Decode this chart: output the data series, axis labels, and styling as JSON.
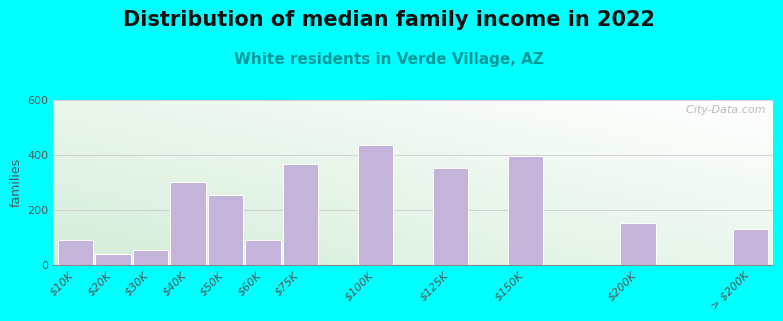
{
  "title": "Distribution of median family income in 2022",
  "subtitle": "White residents in Verde Village, AZ",
  "ylabel": "families",
  "background_outer": "#00FFFF",
  "bar_color": "#C5B4D9",
  "bar_edge_color": "#FFFFFF",
  "categories": [
    "$10K",
    "$20K",
    "$30K",
    "$40K",
    "$50K",
    "$60K",
    "$75K",
    "$100K",
    "$125K",
    "$150K",
    "$200K",
    "> $200K"
  ],
  "values": [
    90,
    40,
    55,
    300,
    255,
    90,
    365,
    435,
    350,
    395,
    150,
    130
  ],
  "x_positions": [
    0,
    1,
    2,
    3,
    4,
    5,
    6,
    8,
    10,
    12,
    15,
    18
  ],
  "ylim": [
    0,
    600
  ],
  "yticks": [
    0,
    200,
    400,
    600
  ],
  "watermark": "  City-Data.com",
  "title_fontsize": 15,
  "subtitle_fontsize": 11,
  "ylabel_fontsize": 9,
  "tick_fontsize": 8,
  "gradient_colors": [
    "#d4edda",
    "#f5fff5",
    "#ffffff"
  ],
  "bar_width": 0.95
}
